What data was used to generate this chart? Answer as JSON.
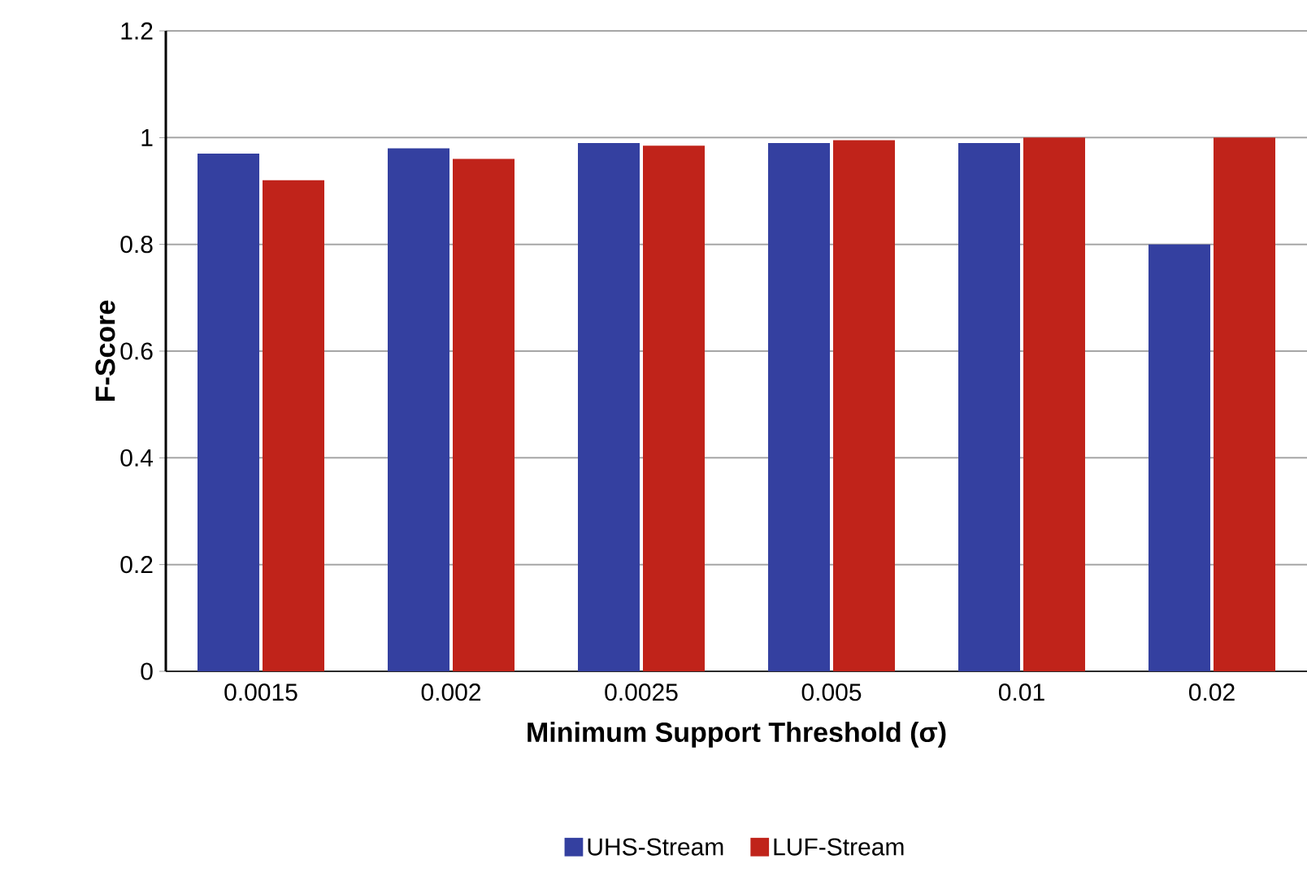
{
  "chart_data": {
    "type": "bar",
    "xlabel": "Minimum Support Threshold (σ)",
    "ylabel": "F-Score",
    "categories": [
      "0.0015",
      "0.002",
      "0.0025",
      "0.005",
      "0.01",
      "0.02"
    ],
    "series": [
      {
        "name": "UHS-Stream",
        "color": "#3440a0",
        "values": [
          0.97,
          0.98,
          0.99,
          0.99,
          0.99,
          0.8
        ]
      },
      {
        "name": "LUF-Stream",
        "color": "#c0231a",
        "values": [
          0.92,
          0.96,
          0.985,
          0.995,
          1.0,
          1.0
        ]
      }
    ],
    "ylim": [
      0,
      1.2
    ],
    "yticks": [
      0,
      0.2,
      0.4,
      0.6,
      0.8,
      1,
      1.2
    ],
    "grid": "y",
    "legend": "bottom"
  }
}
